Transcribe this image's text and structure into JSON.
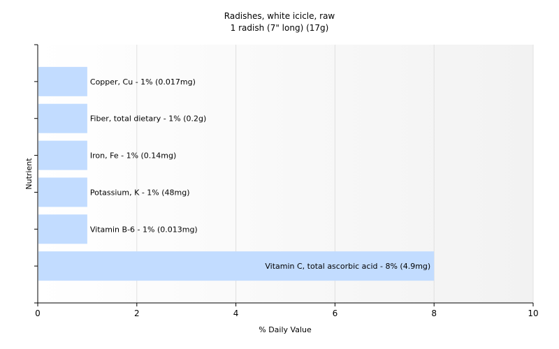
{
  "chart_data": {
    "type": "bar",
    "orientation": "horizontal",
    "title": "Radishes, white icicle, raw",
    "subtitle": "1 radish (7\" long) (17g)",
    "xlabel": "% Daily Value",
    "ylabel": "Nutrient",
    "xlim": [
      0,
      10
    ],
    "xticks": [
      "0",
      "2",
      "4",
      "6",
      "8",
      "10"
    ],
    "grid": true,
    "bar_color": "#c2dcff",
    "categories": [
      "Copper, Cu",
      "Fiber, total dietary",
      "Iron, Fe",
      "Potassium, K",
      "Vitamin B-6",
      "Vitamin C, total ascorbic acid"
    ],
    "values": [
      1,
      1,
      1,
      1,
      1,
      8
    ],
    "labels": [
      "Copper, Cu - 1% (0.017mg)",
      "Fiber, total dietary - 1% (0.2g)",
      "Iron, Fe - 1% (0.14mg)",
      "Potassium, K - 1% (48mg)",
      "Vitamin B-6 - 1% (0.013mg)",
      "Vitamin C, total ascorbic acid - 8% (4.9mg)"
    ]
  }
}
